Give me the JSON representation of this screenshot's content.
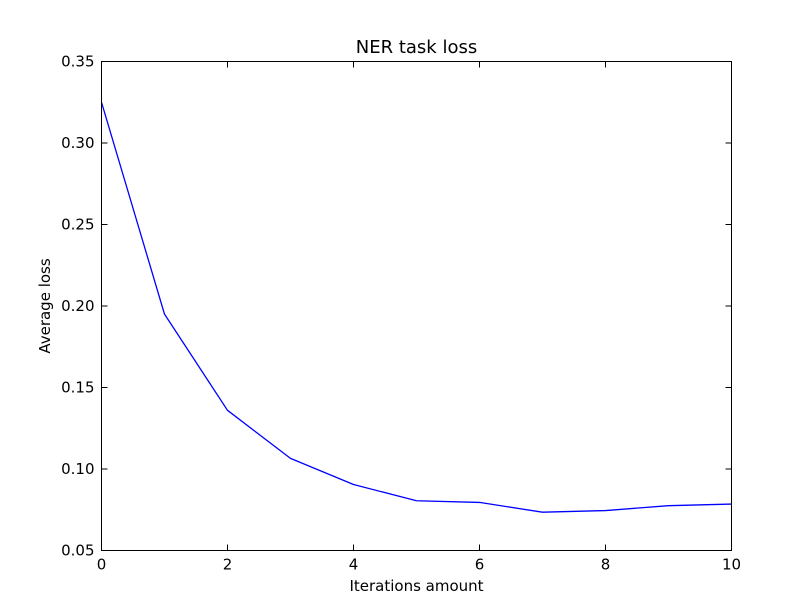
{
  "chart_data": {
    "type": "line",
    "title": "NER task loss",
    "xlabel": "Iterations amount",
    "ylabel": "Average loss",
    "xlim": [
      0,
      10
    ],
    "ylim": [
      0.05,
      0.35
    ],
    "xticks": [
      "0",
      "2",
      "4",
      "6",
      "8",
      "10"
    ],
    "yticks": [
      "0.05",
      "0.10",
      "0.15",
      "0.20",
      "0.25",
      "0.30",
      "0.35"
    ],
    "grid": false,
    "series": [
      {
        "color": "#0000ff",
        "x": [
          0,
          1,
          2,
          3,
          4,
          5,
          6,
          7,
          8,
          9,
          10
        ],
        "y": [
          0.325,
          0.195,
          0.136,
          0.1065,
          0.0905,
          0.0805,
          0.0795,
          0.0735,
          0.0745,
          0.0775,
          0.0785
        ]
      }
    ]
  }
}
